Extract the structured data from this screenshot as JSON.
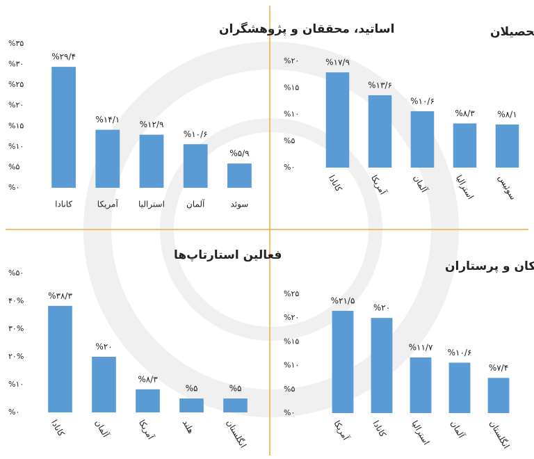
{
  "chart_data": [
    {
      "type": "bar",
      "title": "اساتید، محققان و پژوهشگران",
      "color": "#5b9bd5",
      "categories": [
        "کانادا",
        "آمریکا",
        "استرالیا",
        "آلمان",
        "سوئد"
      ],
      "values": [
        29.4,
        14.1,
        12.9,
        10.6,
        5.9
      ],
      "value_labels": [
        "%۲۹/۴",
        "%۱۴/۱",
        "%۱۲/۹",
        "%۱۰/۶",
        "%۵/۹"
      ],
      "ylim": [
        0,
        35
      ],
      "yticks": [
        {
          "value": 0,
          "label": "%۰"
        },
        {
          "value": 5,
          "label": "%۵"
        },
        {
          "value": 10,
          "label": "%۱۰"
        },
        {
          "value": 15,
          "label": "%۱۵"
        },
        {
          "value": 20,
          "label": "%۲۰"
        },
        {
          "value": 25,
          "label": "%۲۵"
        },
        {
          "value": 30,
          "label": "%۳۰"
        },
        {
          "value": 35,
          "label": "%۳۵"
        }
      ]
    },
    {
      "type": "bar",
      "title": "دانشجویان و فارغ‌التحصیلان",
      "color": "#5b9bd5",
      "categories": [
        "کانادا",
        "آمریکا",
        "آلمان",
        "استرالیا",
        "سوئیس"
      ],
      "values": [
        17.9,
        13.6,
        10.6,
        8.3,
        8.1
      ],
      "value_labels": [
        "%۱۷/۹",
        "%۱۳/۶",
        "%۱۰/۶",
        "%۸/۳",
        "%۸/۱"
      ],
      "ylim": [
        0,
        20
      ],
      "yticks": [
        {
          "value": 0,
          "label": "%۰"
        },
        {
          "value": 5,
          "label": "%۵"
        },
        {
          "value": 10,
          "label": "%۱۰"
        },
        {
          "value": 15,
          "label": "%۱۵"
        },
        {
          "value": 20,
          "label": "%۲۰"
        }
      ]
    },
    {
      "type": "bar",
      "title": "فعالین استارتاپ‌ها",
      "color": "#5b9bd5",
      "categories": [
        "کانادا",
        "آلمان",
        "آمریکا",
        "هلند",
        "انگلستان"
      ],
      "values": [
        38.3,
        20,
        8.3,
        5,
        5
      ],
      "value_labels": [
        "%۳۸/۳",
        "%۲۰",
        "%۸/۳",
        "%۵",
        "%۵"
      ],
      "ylim": [
        0,
        50
      ],
      "yticks": [
        {
          "value": 0,
          "label": "%۰"
        },
        {
          "value": 10,
          "label": "%۱۰"
        },
        {
          "value": 20,
          "label": "۲۰%"
        },
        {
          "value": 30,
          "label": "۳۰%"
        },
        {
          "value": 40,
          "label": "۴۰%"
        },
        {
          "value": 50,
          "label": "%۵۰"
        }
      ]
    },
    {
      "type": "bar",
      "title": "پزشکان و پرستاران",
      "color": "#5b9bd5",
      "categories": [
        "آمریکا",
        "کانادا",
        "استرالیا",
        "آلمان",
        "انگلستان"
      ],
      "values": [
        21.5,
        20,
        11.7,
        10.6,
        7.4
      ],
      "value_labels": [
        "%۲۱/۵",
        "%۲۰",
        "%۱۱/۷",
        "%۱۰/۶",
        "%۷/۴"
      ],
      "ylim": [
        0,
        25
      ],
      "yticks": [
        {
          "value": 0,
          "label": "%۰"
        },
        {
          "value": 5,
          "label": "%۵"
        },
        {
          "value": 10,
          "label": "%۱۰"
        },
        {
          "value": 15,
          "label": "%۱۵"
        },
        {
          "value": 20,
          "label": "%۲۰"
        },
        {
          "value": 25,
          "label": "%۲۵"
        }
      ]
    }
  ]
}
